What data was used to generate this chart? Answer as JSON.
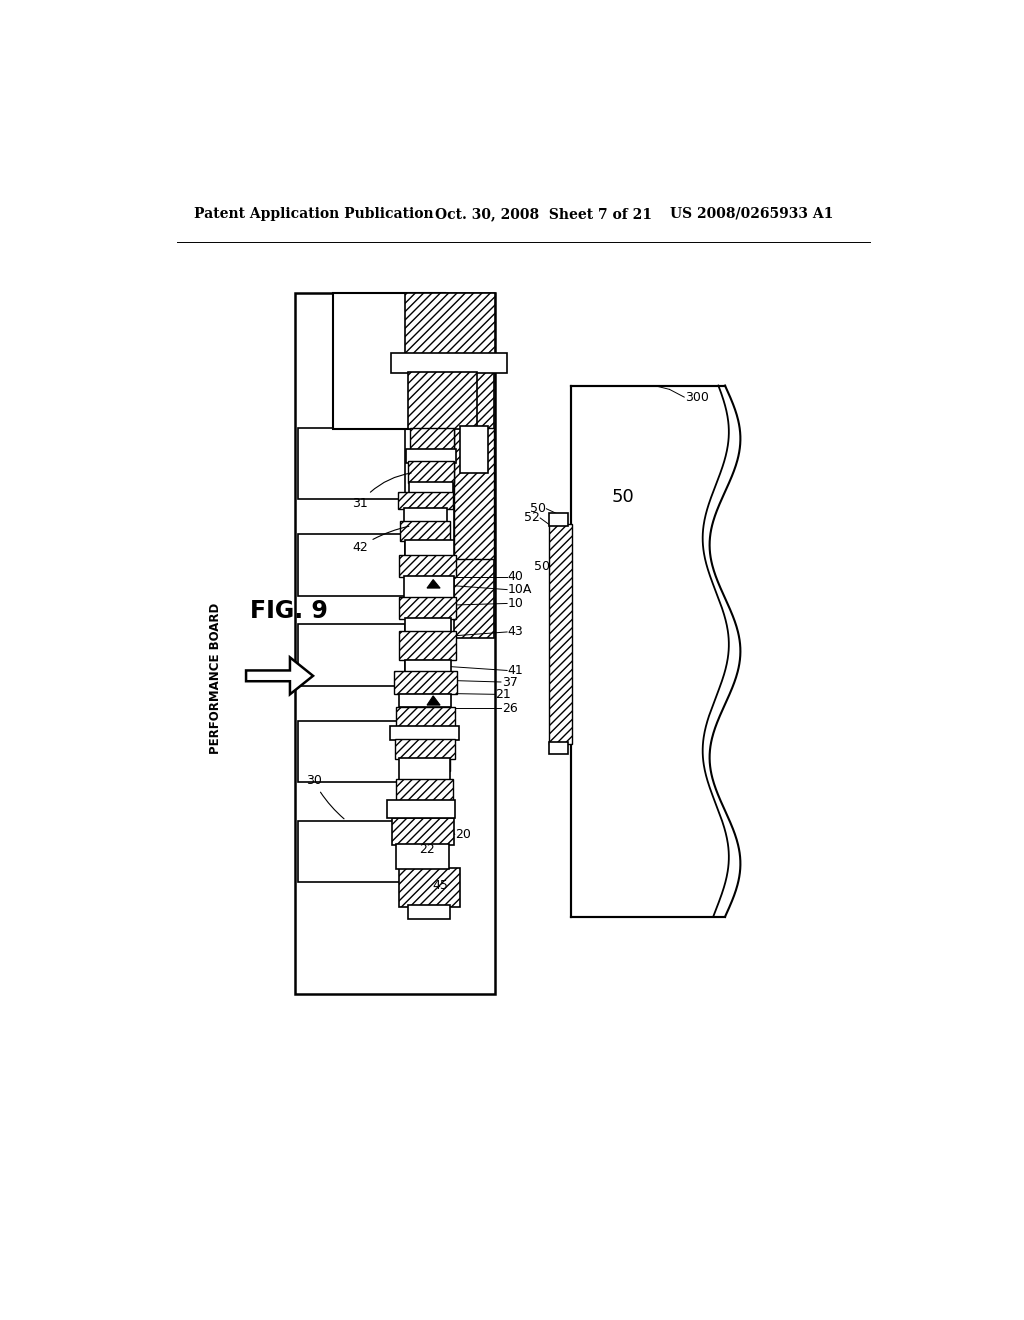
{
  "header_left": "Patent Application Publication",
  "header_mid": "Oct. 30, 2008  Sheet 7 of 21",
  "header_right": "US 2008/0265933 A1",
  "fig_label": "FIG. 9",
  "perf_board": "PERFORMANCE BOARD",
  "bg": "#ffffff"
}
